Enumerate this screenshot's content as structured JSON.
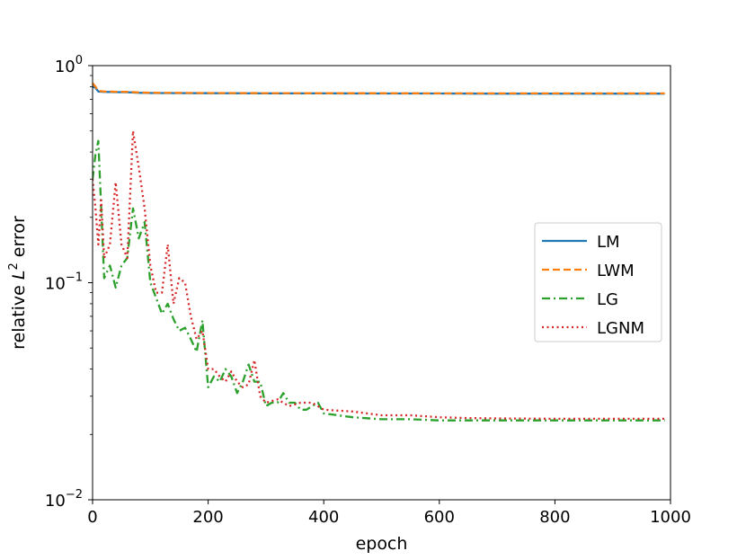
{
  "chart_data": {
    "type": "line",
    "xlabel": "epoch",
    "ylabel_prefix": "relative ",
    "ylabel_var": "L",
    "ylabel_sup": "2",
    "ylabel_suffix": " error",
    "xlim": [
      0,
      1000
    ],
    "ylim": [
      0.01,
      1
    ],
    "yscale": "log",
    "grid": false,
    "legend_position": "center-right",
    "x_ticks": [
      {
        "value": 0,
        "label": "0"
      },
      {
        "value": 200,
        "label": "200"
      },
      {
        "value": 400,
        "label": "400"
      },
      {
        "value": 600,
        "label": "600"
      },
      {
        "value": 800,
        "label": "800"
      },
      {
        "value": 1000,
        "label": "1000"
      }
    ],
    "y_ticks": [
      {
        "value": 1,
        "base": "10",
        "exp": "0"
      },
      {
        "value": 0.1,
        "base": "10",
        "exp": "−1"
      },
      {
        "value": 0.01,
        "base": "10",
        "exp": "−2"
      }
    ],
    "series": [
      {
        "name": "LM",
        "color": "#1f77b4",
        "style": "solid",
        "x": [
          0,
          5,
          10,
          20,
          40,
          60,
          80,
          100,
          150,
          200,
          300,
          400,
          500,
          600,
          700,
          800,
          900,
          990
        ],
        "y": [
          0.8,
          0.79,
          0.76,
          0.757,
          0.755,
          0.754,
          0.75,
          0.748,
          0.747,
          0.746,
          0.745,
          0.745,
          0.744,
          0.744,
          0.743,
          0.743,
          0.743,
          0.743
        ]
      },
      {
        "name": "LWM",
        "color": "#ff7f0e",
        "style": "dashed",
        "x": [
          0,
          5,
          10,
          20,
          40,
          60,
          80,
          100,
          150,
          200,
          300,
          400,
          500,
          600,
          700,
          800,
          900,
          990
        ],
        "y": [
          0.83,
          0.8,
          0.765,
          0.76,
          0.758,
          0.757,
          0.753,
          0.75,
          0.749,
          0.748,
          0.747,
          0.746,
          0.746,
          0.745,
          0.745,
          0.745,
          0.745,
          0.745
        ]
      },
      {
        "name": "LG",
        "color": "#2ca02c",
        "style": "dashdot",
        "x": [
          0,
          5,
          10,
          20,
          30,
          40,
          50,
          60,
          70,
          80,
          90,
          100,
          110,
          120,
          130,
          140,
          150,
          160,
          170,
          180,
          190,
          200,
          210,
          220,
          230,
          240,
          250,
          260,
          270,
          280,
          290,
          300,
          310,
          320,
          330,
          340,
          350,
          360,
          370,
          380,
          390,
          400,
          450,
          500,
          550,
          600,
          650,
          700,
          800,
          900,
          990
        ],
        "y": [
          0.3,
          0.39,
          0.45,
          0.105,
          0.12,
          0.095,
          0.12,
          0.13,
          0.22,
          0.16,
          0.19,
          0.1,
          0.085,
          0.072,
          0.08,
          0.068,
          0.06,
          0.062,
          0.055,
          0.048,
          0.067,
          0.033,
          0.037,
          0.035,
          0.04,
          0.037,
          0.031,
          0.035,
          0.042,
          0.035,
          0.035,
          0.027,
          0.028,
          0.028,
          0.031,
          0.028,
          0.028,
          0.026,
          0.026,
          0.027,
          0.028,
          0.025,
          0.024,
          0.0235,
          0.0235,
          0.0232,
          0.0232,
          0.0232,
          0.0232,
          0.0232,
          0.0232
        ]
      },
      {
        "name": "LGNM",
        "color": "#d62728",
        "style": "dotted",
        "x": [
          0,
          5,
          10,
          15,
          20,
          30,
          40,
          50,
          60,
          70,
          80,
          90,
          100,
          110,
          120,
          130,
          140,
          150,
          160,
          170,
          180,
          190,
          200,
          210,
          220,
          230,
          240,
          250,
          260,
          270,
          280,
          290,
          300,
          320,
          340,
          360,
          380,
          400,
          450,
          500,
          550,
          600,
          650,
          700,
          800,
          900,
          990
        ],
        "y": [
          0.3,
          0.22,
          0.15,
          0.24,
          0.13,
          0.15,
          0.29,
          0.15,
          0.13,
          0.5,
          0.34,
          0.22,
          0.12,
          0.09,
          0.09,
          0.15,
          0.08,
          0.105,
          0.1,
          0.07,
          0.055,
          0.06,
          0.04,
          0.04,
          0.037,
          0.035,
          0.039,
          0.035,
          0.033,
          0.034,
          0.044,
          0.03,
          0.028,
          0.029,
          0.027,
          0.028,
          0.028,
          0.026,
          0.0255,
          0.0245,
          0.0245,
          0.024,
          0.0238,
          0.0237,
          0.0236,
          0.0236,
          0.0236
        ]
      }
    ]
  }
}
